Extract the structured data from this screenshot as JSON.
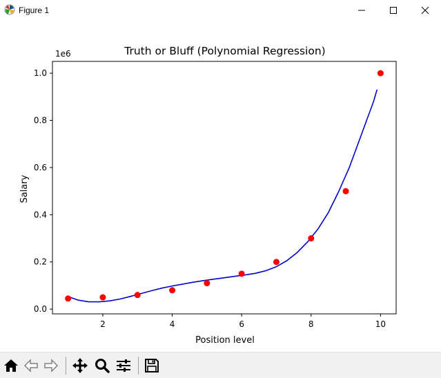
{
  "window": {
    "title": "Figure 1",
    "controls": [
      "minimize",
      "maximize",
      "close"
    ]
  },
  "toolbar": {
    "buttons": [
      {
        "name": "home-button",
        "icon": "home-icon"
      },
      {
        "name": "back-button",
        "icon": "arrow-left-icon"
      },
      {
        "name": "forward-button",
        "icon": "arrow-right-icon"
      },
      {
        "name": "pan-button",
        "icon": "move-icon"
      },
      {
        "name": "zoom-button",
        "icon": "magnifier-icon"
      },
      {
        "name": "configure-subplots-button",
        "icon": "sliders-icon"
      },
      {
        "name": "save-button",
        "icon": "floppy-icon"
      }
    ]
  },
  "colors": {
    "points": "#ff0000",
    "curve": "#0000cc"
  },
  "chart_data": {
    "type": "scatter",
    "title": "Truth or Bluff (Polynomial Regression)",
    "xlabel": "Position level",
    "ylabel": "Salary",
    "offset_label": "1e6",
    "xlim": [
      0.55,
      10.45
    ],
    "ylim": [
      -0.02,
      1.05
    ],
    "xticks": [
      2,
      4,
      6,
      8,
      10
    ],
    "xtick_labels": [
      "2",
      "4",
      "6",
      "8",
      "10"
    ],
    "yticks": [
      0.0,
      0.2,
      0.4,
      0.6,
      0.8,
      1.0
    ],
    "ytick_labels": [
      "0.0",
      "0.2",
      "0.4",
      "0.6",
      "0.8",
      "1.0"
    ],
    "grid": false,
    "series": [
      {
        "kind": "scatter",
        "x": [
          1,
          2,
          3,
          4,
          5,
          6,
          7,
          8,
          9,
          10
        ],
        "y": [
          0.045,
          0.05,
          0.06,
          0.08,
          0.11,
          0.15,
          0.2,
          0.3,
          0.5,
          1.0
        ]
      },
      {
        "kind": "line",
        "x": [
          1.0,
          1.3,
          1.6,
          1.9,
          2.2,
          2.5,
          2.8,
          3.1,
          3.4,
          3.7,
          4.0,
          4.3,
          4.6,
          4.9,
          5.2,
          5.5,
          5.8,
          6.1,
          6.4,
          6.7,
          7.0,
          7.3,
          7.6,
          7.9,
          8.2,
          8.5,
          8.8,
          9.1,
          9.4,
          9.6,
          9.8,
          9.9
        ],
        "y": [
          0.053,
          0.038,
          0.031,
          0.031,
          0.035,
          0.043,
          0.054,
          0.066,
          0.078,
          0.089,
          0.098,
          0.106,
          0.114,
          0.121,
          0.127,
          0.133,
          0.139,
          0.145,
          0.152,
          0.163,
          0.18,
          0.205,
          0.24,
          0.285,
          0.34,
          0.41,
          0.5,
          0.6,
          0.72,
          0.8,
          0.88,
          0.93
        ]
      }
    ]
  }
}
